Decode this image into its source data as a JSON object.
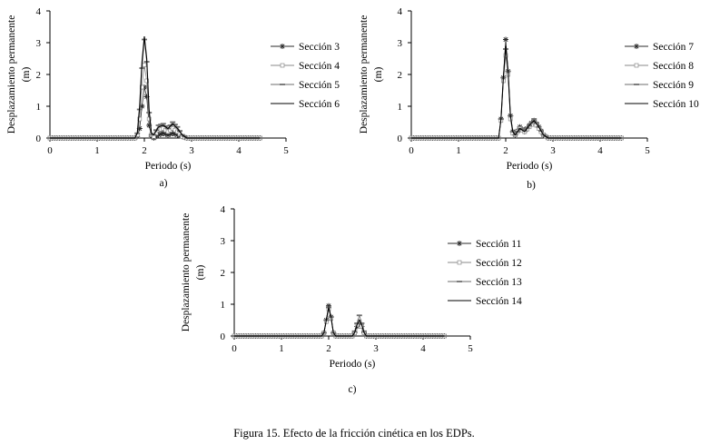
{
  "caption": "Figura 15. Efecto de la fricción cinética en los EDPs.",
  "chart_data": [
    {
      "type": "line",
      "panel_label": "a)",
      "xlabel": "Periodo (s)",
      "ylabel_line1": "Desplazamiento permanente",
      "ylabel_line2": "(m)",
      "xlim": [
        0,
        5
      ],
      "ylim": [
        0,
        4
      ],
      "xticks": [
        "0",
        "1",
        "2",
        "3",
        "4",
        "5"
      ],
      "yticks": [
        "0",
        "1",
        "2",
        "3",
        "4"
      ],
      "legend_position": "right",
      "x": [
        0,
        1.8,
        1.85,
        1.9,
        1.95,
        2.0,
        2.05,
        2.1,
        2.15,
        2.2,
        2.3,
        2.4,
        2.5,
        2.6,
        2.7,
        2.8,
        2.9,
        4.45
      ],
      "series": [
        {
          "name": "Sección 3",
          "marker": "star",
          "values": [
            0,
            0,
            0.05,
            0.3,
            1.0,
            1.6,
            1.3,
            0.4,
            0.05,
            0,
            0.1,
            0.15,
            0.1,
            0.15,
            0.1,
            0.05,
            0,
            0
          ]
        },
        {
          "name": "Sección 4",
          "marker": "square",
          "values": [
            0,
            0,
            0.1,
            0.6,
            1.6,
            2.3,
            1.8,
            0.6,
            0.1,
            0.05,
            0.25,
            0.3,
            0.2,
            0.3,
            0.2,
            0.05,
            0,
            0
          ]
        },
        {
          "name": "Sección 5",
          "marker": "dash",
          "values": [
            0,
            0,
            0.15,
            0.9,
            2.2,
            3.1,
            2.4,
            0.8,
            0.1,
            0.1,
            0.4,
            0.45,
            0.3,
            0.5,
            0.35,
            0.1,
            0,
            0
          ]
        },
        {
          "name": "Sección 6",
          "marker": "none",
          "values": [
            0,
            0,
            0.15,
            1.0,
            2.4,
            3.2,
            2.5,
            0.9,
            0.15,
            0.1,
            0.35,
            0.4,
            0.3,
            0.45,
            0.3,
            0.1,
            0,
            0
          ]
        }
      ]
    },
    {
      "type": "line",
      "panel_label": "b)",
      "xlabel": "Periodo (s)",
      "ylabel_line1": "Desplazamiento permanente",
      "ylabel_line2": "(m)",
      "xlim": [
        0,
        5
      ],
      "ylim": [
        0,
        4
      ],
      "xticks": [
        "0",
        "1",
        "2",
        "3",
        "4",
        "5"
      ],
      "yticks": [
        "0",
        "1",
        "2",
        "3",
        "4"
      ],
      "legend_position": "right",
      "x": [
        0,
        1.85,
        1.9,
        1.95,
        2.0,
        2.05,
        2.1,
        2.15,
        2.2,
        2.3,
        2.4,
        2.5,
        2.6,
        2.7,
        2.8,
        2.9,
        4.45
      ],
      "series": [
        {
          "name": "Sección 7",
          "marker": "star",
          "values": [
            0,
            0,
            0.6,
            1.9,
            3.1,
            2.1,
            0.7,
            0.2,
            0.1,
            0.35,
            0.2,
            0.4,
            0.55,
            0.35,
            0.1,
            0,
            0
          ]
        },
        {
          "name": "Sección 8",
          "marker": "square",
          "values": [
            0,
            0,
            0.55,
            1.8,
            2.6,
            2.0,
            0.6,
            0.15,
            0.1,
            0.3,
            0.2,
            0.35,
            0.5,
            0.3,
            0.1,
            0,
            0
          ]
        },
        {
          "name": "Sección 9",
          "marker": "dash",
          "values": [
            0,
            0,
            0.6,
            1.9,
            2.8,
            2.1,
            0.7,
            0.2,
            0.1,
            0.3,
            0.25,
            0.4,
            0.6,
            0.35,
            0.1,
            0,
            0
          ]
        },
        {
          "name": "Sección 10",
          "marker": "none",
          "values": [
            0,
            0,
            0.6,
            1.9,
            2.9,
            2.1,
            0.7,
            0.2,
            0.1,
            0.3,
            0.2,
            0.4,
            0.55,
            0.35,
            0.1,
            0,
            0
          ]
        }
      ]
    },
    {
      "type": "line",
      "panel_label": "c)",
      "xlabel": "Periodo (s)",
      "ylabel_line1": "Desplazamiento permanente",
      "ylabel_line2": "(m)",
      "xlim": [
        0,
        5
      ],
      "ylim": [
        0,
        4
      ],
      "xticks": [
        "0",
        "1",
        "2",
        "3",
        "4",
        "5"
      ],
      "yticks": [
        "0",
        "1",
        "2",
        "3",
        "4"
      ],
      "legend_position": "right",
      "x": [
        0,
        1.85,
        1.9,
        1.95,
        2.0,
        2.05,
        2.1,
        2.15,
        2.5,
        2.55,
        2.6,
        2.65,
        2.7,
        2.75,
        2.8,
        4.45
      ],
      "series": [
        {
          "name": "Sección 11",
          "marker": "star",
          "values": [
            0,
            0,
            0.1,
            0.5,
            0.95,
            0.6,
            0.1,
            0,
            0,
            0.1,
            0.3,
            0.4,
            0.3,
            0.1,
            0,
            0
          ]
        },
        {
          "name": "Sección 12",
          "marker": "square",
          "values": [
            0,
            0,
            0.1,
            0.45,
            0.85,
            0.55,
            0.1,
            0,
            0,
            0.1,
            0.35,
            0.45,
            0.3,
            0.1,
            0,
            0
          ]
        },
        {
          "name": "Sección 13",
          "marker": "dash",
          "values": [
            0,
            0,
            0.1,
            0.5,
            0.9,
            0.6,
            0.1,
            0,
            0,
            0.15,
            0.4,
            0.65,
            0.4,
            0.15,
            0,
            0
          ]
        },
        {
          "name": "Sección 14",
          "marker": "none",
          "values": [
            0,
            0,
            0.1,
            0.5,
            0.9,
            0.6,
            0.1,
            0,
            0,
            0.1,
            0.35,
            0.5,
            0.35,
            0.1,
            0,
            0
          ]
        }
      ]
    }
  ]
}
